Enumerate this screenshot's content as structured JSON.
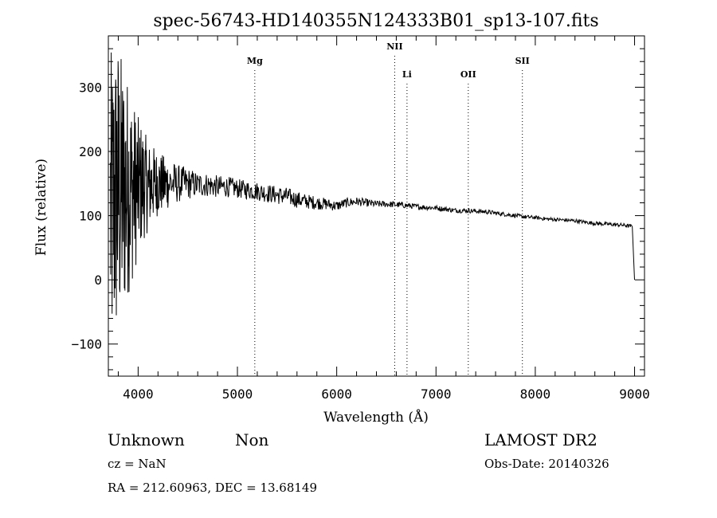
{
  "chart_data": {
    "type": "line",
    "title": "spec-56743-HD140355N124333B01_sp13-107.fits",
    "xlabel": "Wavelength (Å)",
    "ylabel": "Flux (relative)",
    "xlim": [
      3700,
      9100
    ],
    "ylim": [
      -150,
      380
    ],
    "xticks": [
      4000,
      5000,
      6000,
      7000,
      8000,
      9000
    ],
    "yticks": [
      -100,
      0,
      100,
      200,
      300
    ],
    "ytick_labels": [
      "−100",
      "0",
      "100",
      "200",
      "300"
    ],
    "series": [
      {
        "name": "flux",
        "x": [
          3700,
          3740,
          3770,
          3800,
          3830,
          3860,
          3900,
          3950,
          4000,
          4050,
          4100,
          4150,
          4200,
          4300,
          4400,
          4500,
          4600,
          4700,
          4800,
          4900,
          5000,
          5100,
          5200,
          5300,
          5400,
          5500,
          5600,
          5700,
          5800,
          5900,
          6000,
          6100,
          6200,
          6300,
          6400,
          6500,
          6600,
          6700,
          6800,
          6900,
          7000,
          7100,
          7200,
          7300,
          7400,
          7500,
          7600,
          7700,
          7800,
          7900,
          8000,
          8100,
          8200,
          8300,
          8400,
          8500,
          8600,
          8700,
          8800,
          8900,
          8980,
          9000
        ],
        "y": [
          100,
          110,
          130,
          140,
          135,
          140,
          145,
          140,
          145,
          150,
          145,
          150,
          150,
          150,
          150,
          150,
          148,
          148,
          145,
          145,
          142,
          140,
          138,
          135,
          132,
          130,
          125,
          122,
          120,
          118,
          115,
          120,
          122,
          120,
          118,
          118,
          117,
          116,
          114,
          113,
          112,
          110,
          108,
          108,
          107,
          106,
          104,
          102,
          100,
          98,
          97,
          95,
          94,
          93,
          92,
          90,
          88,
          87,
          86,
          85,
          83,
          0
        ]
      }
    ],
    "noise_envelope": {
      "x": [
        3720,
        3800,
        3900,
        4000,
        4100,
        4200,
        4400,
        4600,
        5000,
        5500,
        6000,
        6500,
        7000,
        8000,
        9000
      ],
      "amplitude": [
        250,
        240,
        170,
        110,
        70,
        50,
        30,
        20,
        15,
        14,
        8,
        5,
        4,
        3,
        3
      ]
    },
    "line_markers": [
      {
        "label": "Mg",
        "x": 5175,
        "level": "low"
      },
      {
        "label": "NII",
        "x": 6584,
        "level": "high"
      },
      {
        "label": "Li",
        "x": 6708,
        "level": "mid"
      },
      {
        "label": "OII",
        "x": 7325,
        "level": "mid"
      },
      {
        "label": "SII",
        "x": 7870,
        "level": "low"
      }
    ]
  },
  "footer": {
    "class_label": "Unknown",
    "subclass_label": "Non",
    "cz": "cz = NaN",
    "radec": "RA = 212.60963, DEC =  13.68149",
    "survey": "LAMOST DR2",
    "obs_date": "Obs-Date: 20140326"
  }
}
